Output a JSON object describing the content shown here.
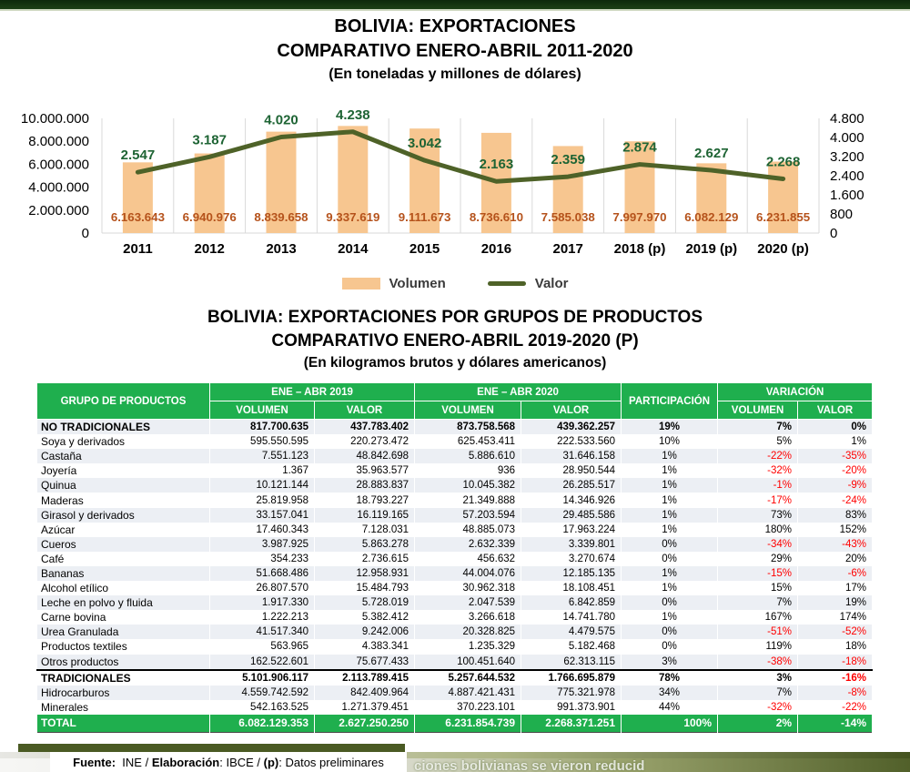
{
  "titles": {
    "chart_line1": "BOLIVIA: EXPORTACIONES",
    "chart_line2": "COMPARATIVO ENERO-ABRIL 2011-2020",
    "chart_line3": "(En toneladas y millones de dólares)",
    "table_line1": "BOLIVIA:  EXPORTACIONES POR GRUPOS DE PRODUCTOS",
    "table_line2": "COMPARATIVO ENERO-ABRIL 2019-2020 (P)",
    "table_line3": "(En kilogramos brutos y dólares americanos)"
  },
  "chart_data": {
    "type": "bar+line",
    "title": "BOLIVIA: EXPORTACIONES COMPARATIVO ENERO-ABRIL 2011-2020 (En toneladas y millones de dólares)",
    "categories": [
      "2011",
      "2012",
      "2013",
      "2014",
      "2015",
      "2016",
      "2017",
      "2018 (p)",
      "2019 (p)",
      "2020 (p)"
    ],
    "series": [
      {
        "name": "Volumen",
        "type": "bar",
        "axis": "left",
        "color": "#F7C690",
        "label_color": "#B5521B",
        "values": [
          6163643,
          6940976,
          8839658,
          9337619,
          9111673,
          8736610,
          7585038,
          7997970,
          6082129,
          6231855
        ],
        "labels": [
          "6.163.643",
          "6.940.976",
          "8.839.658",
          "9.337.619",
          "9.111.673",
          "8.736.610",
          "7.585.038",
          "7.997.970",
          "6.082.129",
          "6.231.855"
        ]
      },
      {
        "name": "Valor",
        "type": "line",
        "axis": "right",
        "color": "#4E6228",
        "label_color": "#1E6434",
        "values": [
          2547,
          3187,
          4020,
          4238,
          3042,
          2163,
          2359,
          2874,
          2627,
          2268
        ],
        "labels": [
          "2.547",
          "3.187",
          "4.020",
          "4.238",
          "3.042",
          "2.163",
          "2.359",
          "2.874",
          "2.627",
          "2.268"
        ]
      }
    ],
    "left_axis": {
      "min": 0,
      "max": 10000000,
      "ticks": [
        "10.000.000",
        "8.000.000",
        "6.000.000",
        "4.000.000",
        "2.000.000",
        "0"
      ]
    },
    "right_axis": {
      "min": 0,
      "max": 4800,
      "ticks": [
        "4.800",
        "4.000",
        "3.200",
        "2.400",
        "1.600",
        "800",
        "0"
      ]
    },
    "grid": "vertical-category-lines",
    "legend_position": "bottom"
  },
  "legend": {
    "volumen": "Volumen",
    "valor": "Valor"
  },
  "table": {
    "header": {
      "grupo": "GRUPO DE PRODUCTOS",
      "g2019": "ENE – ABR 2019",
      "g2020": "ENE – ABR 2020",
      "participacion": "PARTICIPACIÓN",
      "variacion": "VARIACIÓN",
      "volumen": "VOLUMEN",
      "valor": "VALOR"
    },
    "rows": [
      {
        "name": "NO TRADICIONALES",
        "bold": true,
        "cells": [
          "817.700.635",
          "437.783.402",
          "873.758.568",
          "439.362.257",
          "19%",
          "7%",
          "0%"
        ]
      },
      {
        "name": "Soya y derivados",
        "cells": [
          "595.550.595",
          "220.273.472",
          "625.453.411",
          "222.533.560",
          "10%",
          "5%",
          "1%"
        ]
      },
      {
        "name": "Castaña",
        "cells": [
          "7.551.123",
          "48.842.698",
          "5.886.610",
          "31.646.158",
          "1%",
          "-22%",
          "-35%"
        ]
      },
      {
        "name": "Joyería",
        "cells": [
          "1.367",
          "35.963.577",
          "936",
          "28.950.544",
          "1%",
          "-32%",
          "-20%"
        ]
      },
      {
        "name": "Quinua",
        "cells": [
          "10.121.144",
          "28.883.837",
          "10.045.382",
          "26.285.517",
          "1%",
          "-1%",
          "-9%"
        ]
      },
      {
        "name": "Maderas",
        "cells": [
          "25.819.958",
          "18.793.227",
          "21.349.888",
          "14.346.926",
          "1%",
          "-17%",
          "-24%"
        ]
      },
      {
        "name": "Girasol y derivados",
        "cells": [
          "33.157.041",
          "16.119.165",
          "57.203.594",
          "29.485.586",
          "1%",
          "73%",
          "83%"
        ]
      },
      {
        "name": "Azúcar",
        "cells": [
          "17.460.343",
          "7.128.031",
          "48.885.073",
          "17.963.224",
          "1%",
          "180%",
          "152%"
        ]
      },
      {
        "name": "Cueros",
        "cells": [
          "3.987.925",
          "5.863.278",
          "2.632.339",
          "3.339.801",
          "0%",
          "-34%",
          "-43%"
        ]
      },
      {
        "name": "Café",
        "cells": [
          "354.233",
          "2.736.615",
          "456.632",
          "3.270.674",
          "0%",
          "29%",
          "20%"
        ]
      },
      {
        "name": "Bananas",
        "cells": [
          "51.668.486",
          "12.958.931",
          "44.004.076",
          "12.185.135",
          "1%",
          "-15%",
          "-6%"
        ]
      },
      {
        "name": "Alcohol etílico",
        "cells": [
          "26.807.570",
          "15.484.793",
          "30.962.318",
          "18.108.451",
          "1%",
          "15%",
          "17%"
        ]
      },
      {
        "name": "Leche en polvo y fluida",
        "cells": [
          "1.917.330",
          "5.728.019",
          "2.047.539",
          "6.842.859",
          "0%",
          "7%",
          "19%"
        ]
      },
      {
        "name": "Carne bovina",
        "cells": [
          "1.222.213",
          "5.382.412",
          "3.266.618",
          "14.741.780",
          "1%",
          "167%",
          "174%"
        ]
      },
      {
        "name": "Urea Granulada",
        "cells": [
          "41.517.340",
          "9.242.006",
          "20.328.825",
          "4.479.575",
          "0%",
          "-51%",
          "-52%"
        ]
      },
      {
        "name": "Productos textiles",
        "cells": [
          "563.965",
          "4.383.341",
          "1.235.329",
          "5.182.468",
          "0%",
          "119%",
          "18%"
        ]
      },
      {
        "name": "Otros productos",
        "cells": [
          "162.522.601",
          "75.677.433",
          "100.451.640",
          "62.313.115",
          "3%",
          "-38%",
          "-18%"
        ]
      },
      {
        "name": "TRADICIONALES",
        "bold": true,
        "topline": true,
        "cells": [
          "5.101.906.117",
          "2.113.789.415",
          "5.257.644.532",
          "1.766.695.879",
          "78%",
          "3%",
          "-16%"
        ]
      },
      {
        "name": "Hidrocarburos",
        "cells": [
          "4.559.742.592",
          "842.409.964",
          "4.887.421.431",
          "775.321.978",
          "34%",
          "7%",
          "-8%"
        ]
      },
      {
        "name": "Minerales",
        "cells": [
          "542.163.525",
          "1.271.379.451",
          "370.223.101",
          "991.373.901",
          "44%",
          "-32%",
          "-22%"
        ]
      }
    ],
    "total_row": {
      "name": "TOTAL",
      "cells": [
        "6.082.129.353",
        "2.627.250.250",
        "6.231.854.739",
        "2.268.371.251",
        "100%",
        "2%",
        "-14%"
      ]
    }
  },
  "footer": {
    "label1": "Fuente:",
    "text1": "  INE / ",
    "label2": "Elaboración",
    "text2": ": IBCE / ",
    "label3": "(p)",
    "text3": ": Datos preliminares",
    "ghost_fragment": "ciones bolivianas se vieron reducid"
  },
  "colors": {
    "header_green": "#1FAF4E",
    "bar_peach": "#F7C690",
    "line_olive": "#4E6228",
    "value_label_green": "#1E6434",
    "volume_label_orange": "#B5521B",
    "negative_red": "#FF0000",
    "band_row": "#ECEFF4",
    "top_bar_green": "#16350F"
  }
}
